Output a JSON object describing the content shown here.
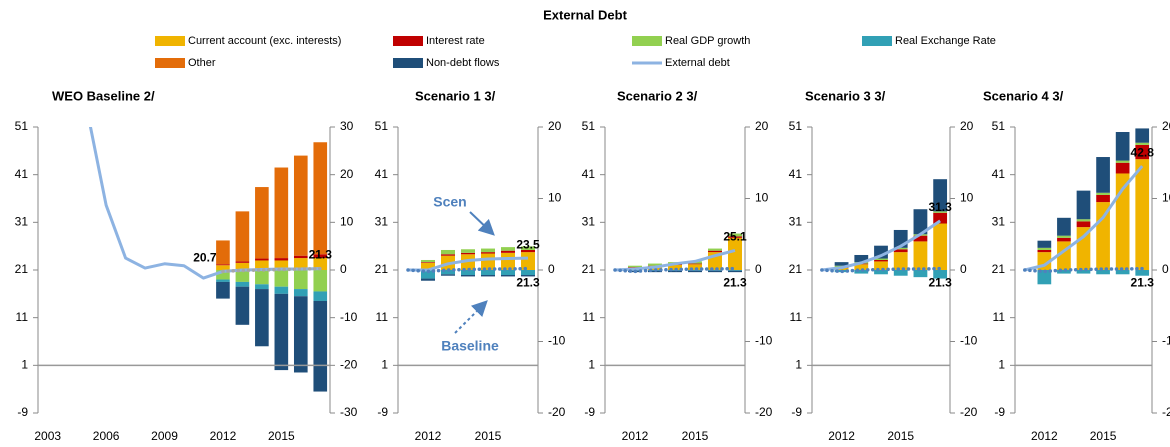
{
  "title": "External Debt",
  "legend": [
    {
      "name": "Current account (exc. interests)",
      "color": "#f0b400",
      "kind": "bar"
    },
    {
      "name": "Interest rate",
      "color": "#c00000",
      "kind": "bar"
    },
    {
      "name": "Real GDP growth",
      "color": "#92d050",
      "kind": "bar"
    },
    {
      "name": "Real Exchange Rate",
      "color": "#31a0b5",
      "kind": "bar"
    },
    {
      "name": "Other",
      "color": "#e36c09",
      "kind": "bar"
    },
    {
      "name": "Non-debt flows",
      "color": "#1f4e79",
      "kind": "bar"
    },
    {
      "name": "External debt",
      "color": "#8db3e2",
      "kind": "line"
    }
  ],
  "chart_data": [
    {
      "type": "bar",
      "title": "WEO Baseline 2/",
      "categories": [
        "2003",
        null,
        null,
        "2006",
        null,
        null,
        "2009",
        null,
        null,
        "2012",
        null,
        null,
        "2015",
        null,
        null
      ],
      "series": [
        {
          "axis": "y2",
          "values": [
            null,
            null,
            null,
            null,
            null,
            null,
            null,
            null,
            null,
            1.0,
            1.5,
            2.0,
            2.0,
            2.5,
            2.5
          ]
        },
        {
          "axis": "y2",
          "values": [
            null,
            null,
            null,
            null,
            null,
            null,
            null,
            null,
            null,
            0.2,
            0.3,
            0.4,
            0.5,
            0.5,
            0.8
          ]
        },
        {
          "axis": "y2",
          "values": [
            null,
            null,
            null,
            null,
            null,
            null,
            null,
            null,
            null,
            -2.0,
            -2.5,
            -3.0,
            -3.5,
            -4.0,
            -4.5
          ]
        },
        {
          "axis": "y2",
          "values": [
            null,
            null,
            null,
            null,
            null,
            null,
            null,
            null,
            null,
            -0.5,
            -1.0,
            -1.0,
            -1.5,
            -1.5,
            -2.0
          ]
        },
        {
          "axis": "y2",
          "values": [
            null,
            null,
            null,
            null,
            null,
            null,
            null,
            null,
            null,
            5.0,
            10.5,
            15.0,
            19.0,
            21.0,
            23.5
          ]
        },
        {
          "axis": "y2",
          "values": [
            null,
            null,
            null,
            null,
            null,
            null,
            null,
            null,
            null,
            -3.5,
            -8.0,
            -12.0,
            -16.0,
            -16.0,
            -19.0
          ]
        },
        {
          "values": [
            null,
            null,
            55,
            34.6,
            23.5,
            21.4,
            22.3,
            21.9,
            19.3,
            20.7,
            21.0,
            21.1,
            21.2,
            21.2,
            21.3
          ],
          "labeled": [
            9,
            14
          ]
        },
        {
          "values": [
            null,
            null,
            null,
            null,
            null,
            null,
            null,
            null,
            null,
            20.7,
            20.9,
            21.0,
            21.1,
            21.2,
            21.3
          ],
          "color": "#a6a6a6",
          "dashed": true
        }
      ],
      "ylim": [
        -9,
        51
      ],
      "yticks": [
        -9,
        1,
        11,
        21,
        31,
        41,
        51
      ],
      "y2lim": [
        -30,
        30
      ],
      "y2ticks": [
        -30,
        -20,
        -10,
        0,
        10,
        20,
        30
      ],
      "x_axis_at": 1
    },
    {
      "type": "bar",
      "title": "Scenario 1 3/",
      "categories": [
        null,
        "2012",
        null,
        null,
        "2015",
        null,
        null
      ],
      "series": [
        {
          "axis": "y2",
          "values": [
            null,
            1.0,
            2.0,
            2.2,
            2.3,
            2.4,
            2.5
          ]
        },
        {
          "axis": "y2",
          "values": [
            null,
            0.1,
            0.2,
            0.2,
            0.2,
            0.3,
            0.3
          ]
        },
        {
          "axis": "y2",
          "values": [
            null,
            0.3,
            0.6,
            0.5,
            0.5,
            0.5,
            0.5
          ]
        },
        {
          "axis": "y2",
          "values": [
            null,
            -1.2,
            -0.6,
            -0.7,
            -0.7,
            -0.7,
            -0.7
          ]
        },
        {
          "axis": "y2",
          "values": [
            null,
            0,
            0,
            0,
            0,
            0,
            0
          ]
        },
        {
          "axis": "y2",
          "values": [
            null,
            -0.3,
            -0.2,
            -0.2,
            -0.2,
            -0.2,
            -0.2
          ]
        },
        {
          "values": [
            21,
            21,
            22.3,
            23,
            23.3,
            23.4,
            23.5
          ],
          "labeled": [
            6
          ]
        },
        {
          "values": [
            21,
            20.7,
            21.0,
            21.1,
            21.2,
            21.2,
            21.3
          ],
          "color": "#4f81bd",
          "dashed": true,
          "labeled": [
            6
          ]
        }
      ],
      "annotations": [
        "Scen",
        "Baseline"
      ],
      "ylim": [
        -9,
        51
      ],
      "yticks": [
        -9,
        1,
        11,
        21,
        31,
        41,
        51
      ],
      "y2lim": [
        -20,
        20
      ],
      "y2ticks": [
        -20,
        -10,
        0,
        10,
        20
      ],
      "x_axis_at": 1
    },
    {
      "type": "bar",
      "title": "Scenario 2 3/",
      "categories": [
        null,
        "2012",
        null,
        null,
        "2015",
        null,
        null
      ],
      "series": [
        {
          "axis": "y2",
          "values": [
            null,
            0.3,
            0.5,
            0.7,
            0.8,
            2.5,
            4.5
          ]
        },
        {
          "axis": "y2",
          "values": [
            null,
            0.1,
            0.1,
            0.1,
            0.1,
            0.2,
            0.2
          ]
        },
        {
          "axis": "y2",
          "values": [
            null,
            0.2,
            0.3,
            0.3,
            0.3,
            0.3,
            0.4
          ]
        },
        {
          "axis": "y2",
          "values": [
            null,
            -0.1,
            -0.1,
            -0.1,
            -0.1,
            -0.1,
            -0.1
          ]
        },
        {
          "axis": "y2",
          "values": [
            null,
            0,
            0,
            0,
            0,
            0,
            0
          ]
        },
        {
          "axis": "y2",
          "values": [
            null,
            -0.2,
            -0.2,
            -0.2,
            -0.2,
            -0.2,
            -0.2
          ]
        },
        {
          "values": [
            21,
            21.2,
            21.6,
            22.3,
            22.8,
            24.0,
            25.1
          ],
          "labeled": [
            6
          ]
        },
        {
          "values": [
            21,
            20.7,
            21.0,
            21.1,
            21.2,
            21.2,
            21.3
          ],
          "color": "#4f81bd",
          "dashed": true,
          "labeled": [
            6
          ]
        }
      ],
      "ylim": [
        -9,
        51
      ],
      "yticks": [
        -9,
        1,
        11,
        21,
        31,
        41,
        51
      ],
      "y2lim": [
        -20,
        20
      ],
      "y2ticks": [
        -20,
        -10,
        0,
        10,
        20
      ],
      "x_axis_at": 1
    },
    {
      "type": "bar",
      "title": "Scenario 3 3/",
      "categories": [
        null,
        "2012",
        null,
        null,
        "2015",
        null,
        null
      ],
      "series": [
        {
          "axis": "y2",
          "values": [
            null,
            0.3,
            0.8,
            1.2,
            2.5,
            4.0,
            6.5
          ]
        },
        {
          "axis": "y2",
          "values": [
            null,
            0.1,
            0.1,
            0.2,
            0.4,
            0.8,
            1.5
          ]
        },
        {
          "axis": "y2",
          "values": [
            null,
            0.2,
            0.2,
            0.2,
            0.2,
            0.2,
            0.2
          ]
        },
        {
          "axis": "y2",
          "values": [
            null,
            -0.3,
            -0.5,
            -0.6,
            -0.8,
            -1.0,
            -1.2
          ]
        },
        {
          "axis": "y2",
          "values": [
            null,
            0,
            0,
            0,
            0,
            0,
            0
          ]
        },
        {
          "axis": "y2",
          "values": [
            null,
            0.5,
            1.0,
            1.8,
            2.5,
            3.5,
            4.5
          ]
        },
        {
          "values": [
            21,
            21.5,
            22.5,
            24,
            26,
            28.5,
            31.3
          ],
          "labeled": [
            6
          ]
        },
        {
          "values": [
            21,
            20.7,
            21.0,
            21.1,
            21.2,
            21.2,
            21.3
          ],
          "color": "#4f81bd",
          "dashed": true,
          "labeled": [
            6
          ]
        }
      ],
      "ylim": [
        -9,
        51
      ],
      "yticks": [
        -9,
        1,
        11,
        21,
        31,
        41,
        51
      ],
      "y2lim": [
        -20,
        20
      ],
      "y2ticks": [
        -20,
        -10,
        0,
        10,
        20
      ],
      "x_axis_at": 1
    },
    {
      "type": "bar",
      "title": "Scenario 4 3/",
      "categories": [
        null,
        "2012",
        null,
        null,
        "2015",
        null,
        null
      ],
      "series": [
        {
          "axis": "y2",
          "values": [
            null,
            2.5,
            4.0,
            6.0,
            9.5,
            13.5,
            15.5
          ]
        },
        {
          "axis": "y2",
          "values": [
            null,
            0.3,
            0.5,
            0.8,
            1.0,
            1.5,
            2.0
          ]
        },
        {
          "axis": "y2",
          "values": [
            null,
            0.3,
            0.3,
            0.3,
            0.3,
            0.3,
            0.3
          ]
        },
        {
          "axis": "y2",
          "values": [
            null,
            -2.0,
            -0.5,
            -0.5,
            -0.6,
            -0.6,
            -0.8
          ]
        },
        {
          "axis": "y2",
          "values": [
            null,
            0,
            0,
            0,
            0,
            0,
            0
          ]
        },
        {
          "axis": "y2",
          "values": [
            null,
            1.0,
            2.5,
            4.0,
            5.0,
            4.0,
            2.0
          ]
        },
        {
          "values": [
            21,
            22,
            25,
            28,
            32,
            38,
            42.8
          ],
          "labeled": [
            6
          ]
        },
        {
          "values": [
            21,
            20.7,
            21.0,
            21.1,
            21.2,
            21.2,
            21.3
          ],
          "color": "#4f81bd",
          "dashed": true,
          "labeled": [
            6
          ]
        }
      ],
      "ylim": [
        -9,
        51
      ],
      "yticks": [
        -9,
        1,
        11,
        21,
        31,
        41,
        51
      ],
      "y2lim": [
        -20,
        20
      ],
      "y2ticks": [
        -20,
        -10,
        0,
        10,
        20
      ],
      "x_axis_at": 1
    }
  ]
}
